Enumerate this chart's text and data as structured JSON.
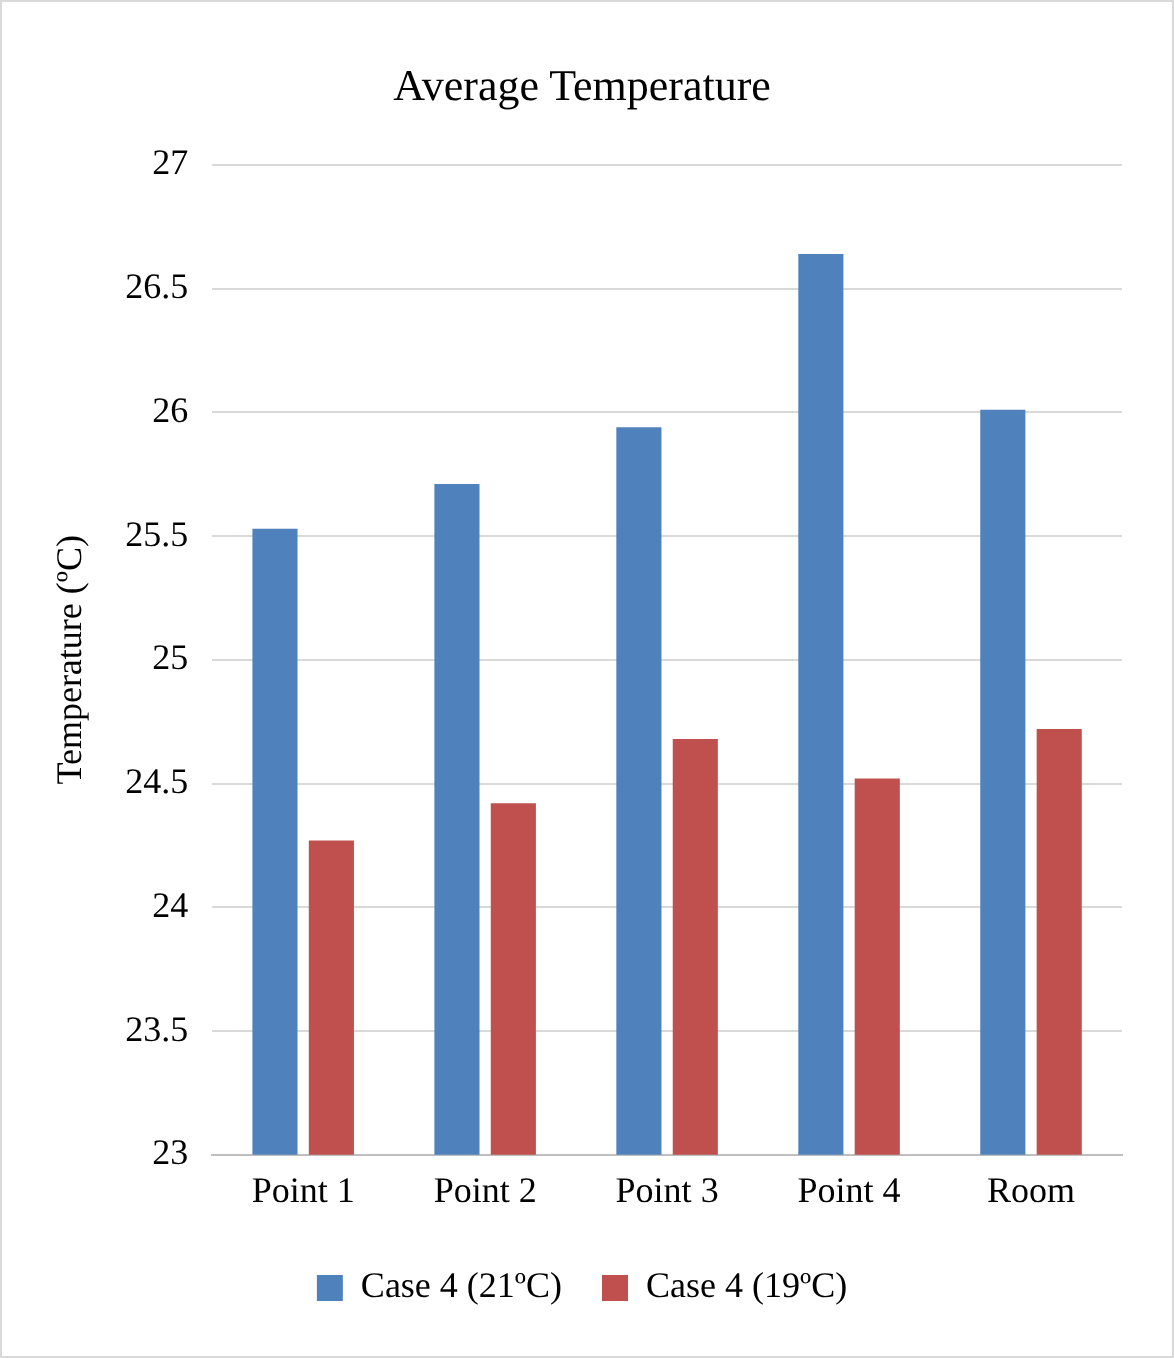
{
  "chart_data": {
    "type": "bar",
    "title": "Average Temperature",
    "ylabel": "Temperature (ºC)",
    "categories": [
      "Point 1",
      "Point 2",
      "Point 3",
      "Point 4",
      "Room"
    ],
    "series": [
      {
        "name": "Case 4 (21ºC)",
        "color": "#4f81bd",
        "values": [
          25.53,
          25.71,
          25.94,
          26.64,
          26.01
        ]
      },
      {
        "name": "Case 4 (19ºC)",
        "color": "#c0504d",
        "values": [
          24.27,
          24.42,
          24.68,
          24.52,
          24.72
        ]
      }
    ],
    "ylim": [
      23,
      27
    ],
    "yticks": [
      23,
      23.5,
      24,
      24.5,
      25,
      25.5,
      26,
      26.5,
      27
    ],
    "grid": "y",
    "legend": "bottom"
  }
}
